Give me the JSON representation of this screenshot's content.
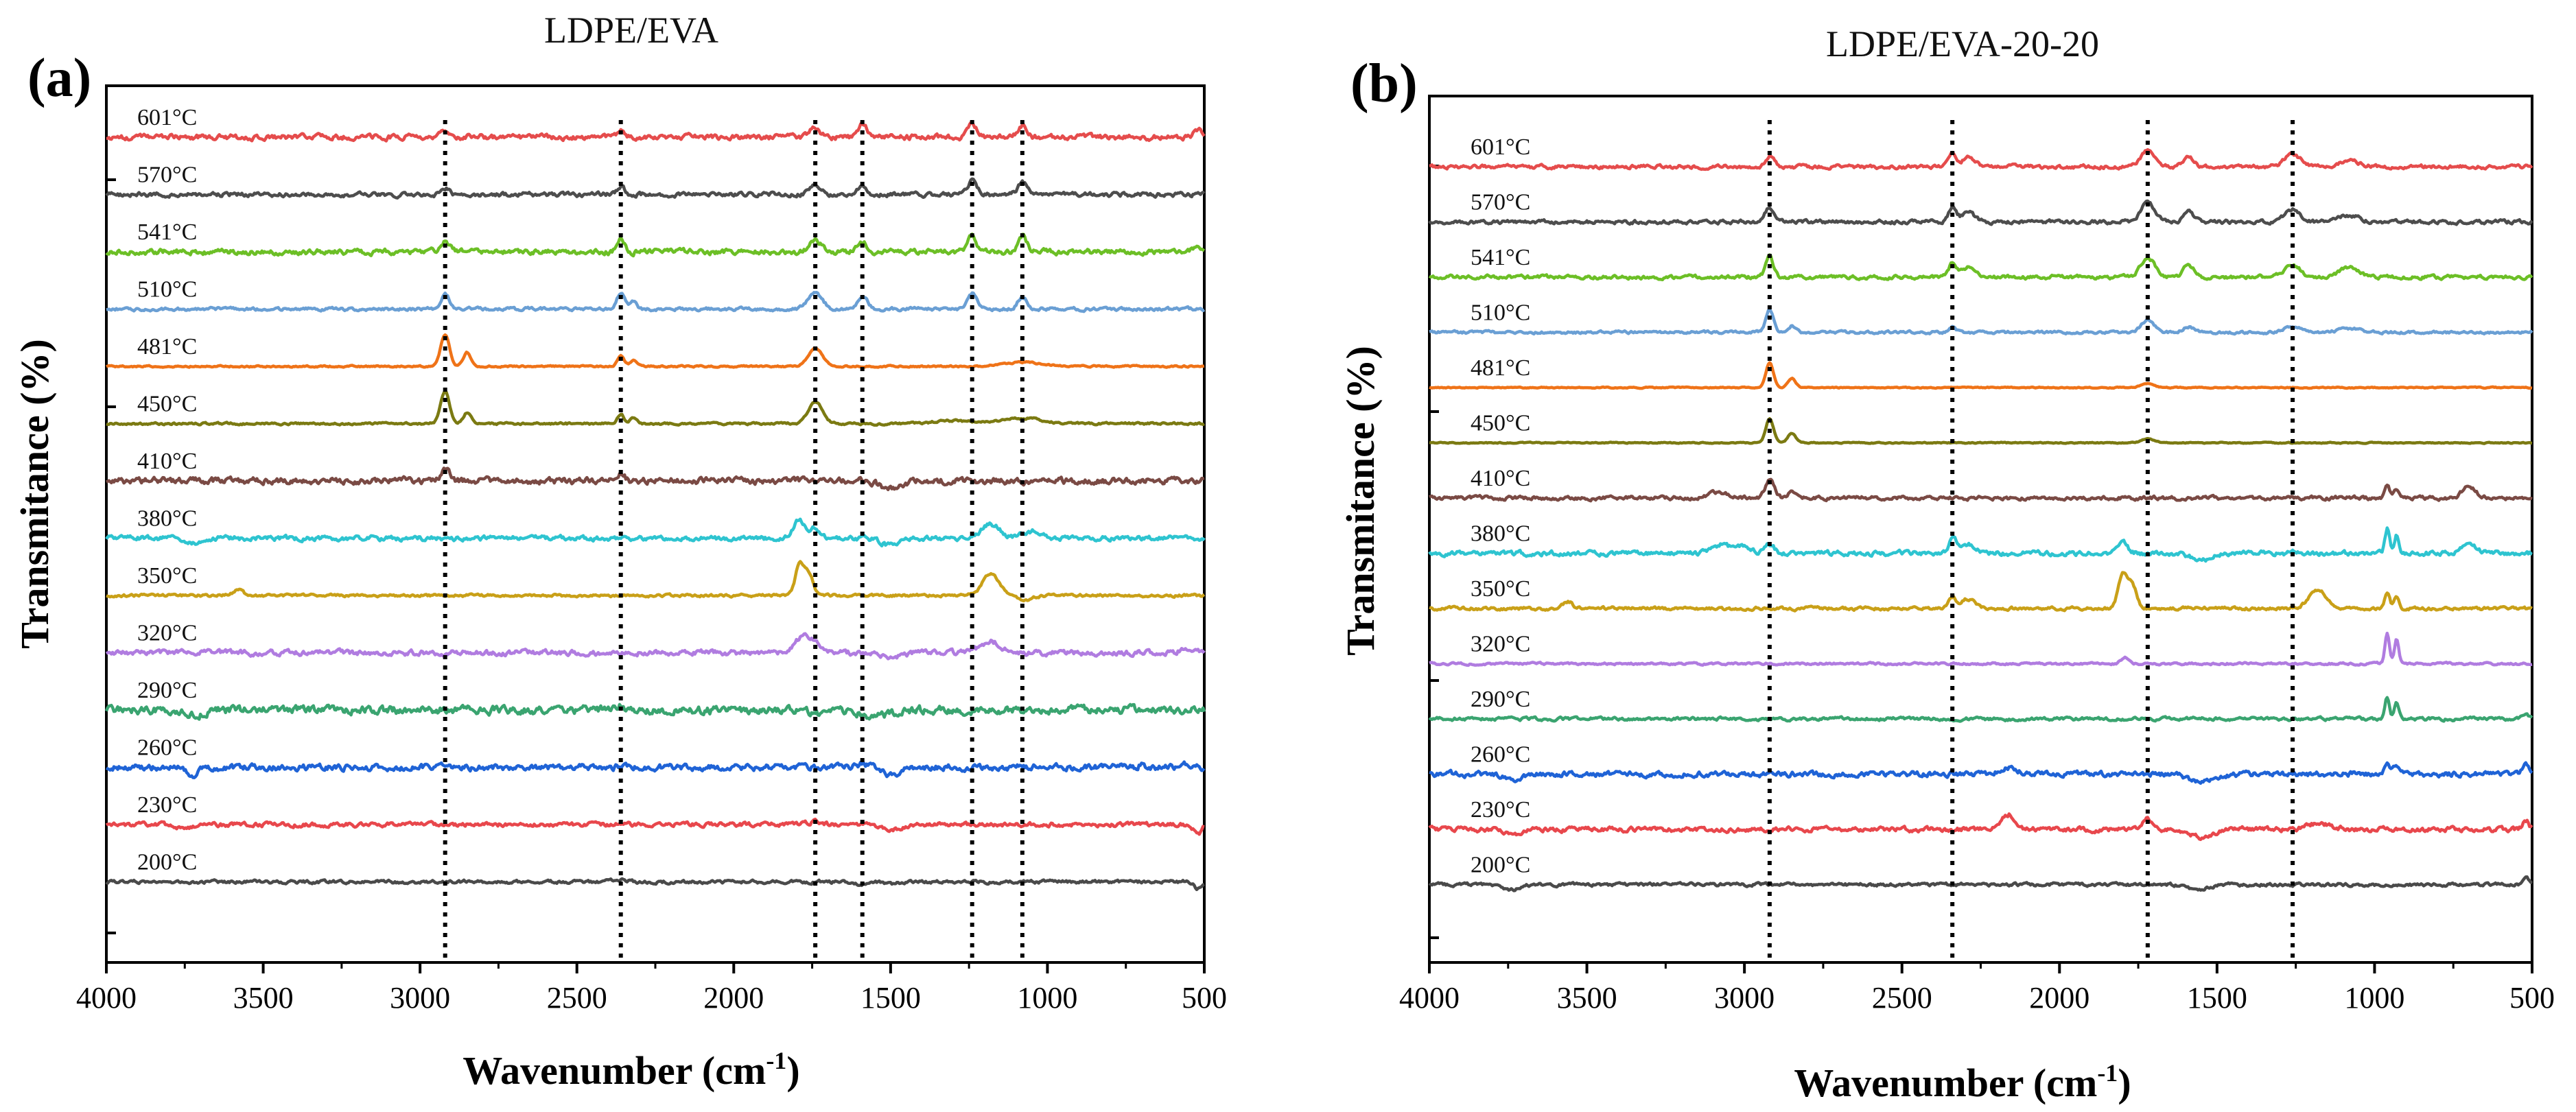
{
  "chart_data": [
    {
      "panel": "(a)",
      "type": "line",
      "title": "LDPE/EVA",
      "xlabel": "Wavenumber (cm",
      "xlabel_sup": "-1",
      "xlabel_close": ")",
      "ylabel": "Transmitance (%)",
      "xlim": [
        4000,
        500
      ],
      "xticks": [
        "4000",
        "3500",
        "3000",
        "2500",
        "2000",
        "1500",
        "1000",
        "500"
      ],
      "reference_lines": [
        2920,
        2360,
        1740,
        1590,
        1240,
        1080
      ],
      "series": [
        {
          "name": "200°C",
          "color": "#4a4a4a",
          "noise": 0.6,
          "peaks": [
            [
              2360,
              3,
              20
            ],
            [
              1590,
              -4,
              18
            ],
            [
              1500,
              -3,
              30
            ],
            [
              520,
              -10,
              12
            ]
          ]
        },
        {
          "name": "230°C",
          "color": "#e8474c",
          "noise": 0.8,
          "peaks": [
            [
              3750,
              -6,
              25
            ],
            [
              2360,
              4,
              15
            ],
            [
              1740,
              4,
              20
            ],
            [
              1500,
              -8,
              30
            ],
            [
              520,
              -14,
              12
            ]
          ]
        },
        {
          "name": "260°C",
          "color": "#1f63d6",
          "noise": 1.2,
          "peaks": [
            [
              3730,
              -12,
              20
            ],
            [
              1590,
              6,
              15
            ],
            [
              1500,
              -10,
              30
            ],
            [
              700,
              6,
              10
            ],
            [
              560,
              6,
              10
            ]
          ]
        },
        {
          "name": "290°C",
          "color": "#3aa470",
          "noise": 1.5,
          "peaks": [
            [
              3720,
              -8,
              25
            ],
            [
              2360,
              8,
              10
            ],
            [
              1740,
              -6,
              25
            ],
            [
              1550,
              -10,
              40
            ]
          ]
        },
        {
          "name": "320°C",
          "color": "#b07ce0",
          "noise": 1.0,
          "peaks": [
            [
              1780,
              24,
              22
            ],
            [
              1740,
              12,
              20
            ],
            [
              1500,
              -8,
              30
            ],
            [
              1180,
              16,
              30
            ],
            [
              560,
              8,
              15
            ]
          ]
        },
        {
          "name": "350°C",
          "color": "#c9a018",
          "noise": 0.5,
          "peaks": [
            [
              3580,
              8,
              15
            ],
            [
              1790,
              44,
              14
            ],
            [
              1760,
              30,
              14
            ],
            [
              1180,
              32,
              26
            ],
            [
              1070,
              -6,
              25
            ]
          ]
        },
        {
          "name": "380°C",
          "color": "#2ec4d0",
          "noise": 0.9,
          "peaks": [
            [
              3720,
              -6,
              20
            ],
            [
              1790,
              26,
              18
            ],
            [
              1740,
              14,
              15
            ],
            [
              1500,
              -10,
              30
            ],
            [
              1180,
              20,
              30
            ],
            [
              1050,
              10,
              30
            ]
          ]
        },
        {
          "name": "410°C",
          "color": "#7a4a44",
          "noise": 1.2,
          "peaks": [
            [
              2920,
              16,
              14
            ],
            [
              2360,
              10,
              12
            ],
            [
              1500,
              -12,
              30
            ]
          ]
        },
        {
          "name": "450°C",
          "color": "#7b7a12",
          "noise": 0.4,
          "peaks": [
            [
              2920,
              48,
              14
            ],
            [
              2850,
              16,
              12
            ],
            [
              2360,
              14,
              10
            ],
            [
              2320,
              8,
              10
            ],
            [
              1740,
              32,
              22
            ],
            [
              1300,
              4,
              60
            ],
            [
              1080,
              8,
              60
            ]
          ]
        },
        {
          "name": "481°C",
          "color": "#ef7318",
          "noise": 0.3,
          "peaks": [
            [
              2920,
              46,
              14
            ],
            [
              2850,
              20,
              12
            ],
            [
              2360,
              16,
              10
            ],
            [
              2320,
              8,
              10
            ],
            [
              1740,
              26,
              22
            ],
            [
              1080,
              6,
              60
            ]
          ]
        },
        {
          "name": "510°C",
          "color": "#6a9fd4",
          "noise": 0.6,
          "peaks": [
            [
              2920,
              22,
              14
            ],
            [
              2360,
              22,
              14
            ],
            [
              2320,
              10,
              10
            ],
            [
              1740,
              24,
              22
            ],
            [
              1590,
              18,
              16
            ],
            [
              1240,
              22,
              14
            ],
            [
              1080,
              18,
              14
            ]
          ]
        },
        {
          "name": "541°C",
          "color": "#6cbf26",
          "noise": 1.0,
          "peaks": [
            [
              2920,
              16,
              14
            ],
            [
              2360,
              18,
              12
            ],
            [
              1740,
              18,
              18
            ],
            [
              1590,
              16,
              14
            ],
            [
              1240,
              24,
              14
            ],
            [
              1080,
              24,
              14
            ],
            [
              520,
              12,
              12
            ]
          ]
        },
        {
          "name": "570°C",
          "color": "#4d4d4d",
          "noise": 0.8,
          "peaks": [
            [
              2920,
              10,
              12
            ],
            [
              2360,
              12,
              12
            ],
            [
              1740,
              12,
              18
            ],
            [
              1590,
              12,
              14
            ],
            [
              1240,
              20,
              14
            ],
            [
              1080,
              18,
              14
            ]
          ]
        },
        {
          "name": "601°C",
          "color": "#e54c4c",
          "noise": 1.0,
          "peaks": [
            [
              2920,
              8,
              12
            ],
            [
              2360,
              10,
              12
            ],
            [
              1740,
              14,
              16
            ],
            [
              1590,
              18,
              14
            ],
            [
              1240,
              18,
              14
            ],
            [
              1080,
              18,
              14
            ],
            [
              520,
              12,
              12
            ]
          ]
        }
      ]
    },
    {
      "panel": "(b)",
      "type": "line",
      "title": "LDPE/EVA-20-20",
      "xlabel": "Wavenumber (cm",
      "xlabel_sup": "-1",
      "xlabel_close": ")",
      "ylabel": "Transmitance (%)",
      "xlim": [
        4000,
        500
      ],
      "xticks": [
        "4000",
        "3500",
        "3000",
        "2500",
        "2000",
        "1500",
        "1000",
        "500"
      ],
      "reference_lines": [
        2920,
        2340,
        1720,
        1260
      ],
      "series": [
        {
          "name": "200°C",
          "color": "#4a4a4a",
          "noise": 0.6,
          "peaks": [
            [
              3740,
              -8,
              25
            ],
            [
              1560,
              -8,
              30
            ],
            [
              520,
              14,
              10
            ]
          ]
        },
        {
          "name": "230°C",
          "color": "#e8474c",
          "noise": 0.9,
          "peaks": [
            [
              3740,
              -8,
              25
            ],
            [
              2160,
              22,
              22
            ],
            [
              1720,
              14,
              14
            ],
            [
              1550,
              -12,
              35
            ],
            [
              1180,
              8,
              40
            ],
            [
              520,
              14,
              10
            ]
          ]
        },
        {
          "name": "260°C",
          "color": "#1f63d6",
          "noise": 1.0,
          "peaks": [
            [
              3740,
              -8,
              25
            ],
            [
              2160,
              10,
              25
            ],
            [
              1550,
              -12,
              35
            ],
            [
              960,
              18,
              8
            ],
            [
              930,
              14,
              8
            ],
            [
              520,
              14,
              10
            ]
          ]
        },
        {
          "name": "290°C",
          "color": "#3aa470",
          "noise": 0.6,
          "peaks": [
            [
              960,
              32,
              7
            ],
            [
              930,
              24,
              7
            ],
            [
              520,
              8,
              10
            ]
          ]
        },
        {
          "name": "320°C",
          "color": "#b07ce0",
          "noise": 0.4,
          "peaks": [
            [
              1790,
              8,
              14
            ],
            [
              960,
              44,
              7
            ],
            [
              930,
              36,
              7
            ]
          ]
        },
        {
          "name": "350°C",
          "color": "#c9a018",
          "noise": 0.6,
          "peaks": [
            [
              3560,
              10,
              15
            ],
            [
              2340,
              16,
              12
            ],
            [
              2290,
              14,
              22
            ],
            [
              1800,
              48,
              14
            ],
            [
              1770,
              36,
              14
            ],
            [
              1180,
              28,
              28
            ],
            [
              960,
              24,
              8
            ],
            [
              930,
              18,
              8
            ]
          ]
        },
        {
          "name": "380°C",
          "color": "#2ec4d0",
          "noise": 0.9,
          "peaks": [
            [
              3070,
              12,
              25
            ],
            [
              3000,
              12,
              20
            ],
            [
              2920,
              12,
              14
            ],
            [
              2340,
              20,
              12
            ],
            [
              2290,
              12,
              25
            ],
            [
              1800,
              16,
              16
            ],
            [
              1550,
              -10,
              30
            ],
            [
              960,
              36,
              7
            ],
            [
              930,
              28,
              7
            ],
            [
              700,
              16,
              20
            ]
          ]
        },
        {
          "name": "410°C",
          "color": "#7a4a44",
          "noise": 0.7,
          "peaks": [
            [
              3080,
              8,
              30
            ],
            [
              2920,
              26,
              14
            ],
            [
              2850,
              10,
              12
            ],
            [
              960,
              18,
              8
            ],
            [
              930,
              14,
              8
            ],
            [
              700,
              18,
              20
            ]
          ]
        },
        {
          "name": "450°C",
          "color": "#7b7a12",
          "noise": 0.2,
          "peaks": [
            [
              2920,
              36,
              12
            ],
            [
              2850,
              14,
              12
            ],
            [
              1720,
              6,
              20
            ]
          ]
        },
        {
          "name": "481°C",
          "color": "#ef7318",
          "noise": 0.2,
          "peaks": [
            [
              2920,
              36,
              12
            ],
            [
              2850,
              14,
              12
            ],
            [
              1720,
              6,
              20
            ]
          ]
        },
        {
          "name": "510°C",
          "color": "#6a9fd4",
          "noise": 0.5,
          "peaks": [
            [
              2920,
              34,
              12
            ],
            [
              2850,
              10,
              12
            ],
            [
              2340,
              8,
              12
            ],
            [
              1720,
              18,
              20
            ],
            [
              1590,
              8,
              18
            ],
            [
              1260,
              8,
              25
            ],
            [
              1080,
              6,
              30
            ]
          ]
        },
        {
          "name": "541°C",
          "color": "#6cbf26",
          "noise": 0.7,
          "peaks": [
            [
              2920,
              30,
              12
            ],
            [
              2340,
              20,
              12
            ],
            [
              2290,
              14,
              20
            ],
            [
              1720,
              28,
              22
            ],
            [
              1590,
              18,
              16
            ],
            [
              1260,
              18,
              25
            ],
            [
              1080,
              14,
              30
            ]
          ]
        },
        {
          "name": "570°C",
          "color": "#4d4d4d",
          "noise": 0.7,
          "peaks": [
            [
              2920,
              22,
              14
            ],
            [
              2340,
              22,
              12
            ],
            [
              2290,
              14,
              20
            ],
            [
              1720,
              28,
              22
            ],
            [
              1590,
              14,
              16
            ],
            [
              1260,
              18,
              25
            ],
            [
              1080,
              10,
              30
            ]
          ]
        },
        {
          "name": "601°C",
          "color": "#e54c4c",
          "noise": 0.7,
          "peaks": [
            [
              2920,
              16,
              14
            ],
            [
              2340,
              20,
              12
            ],
            [
              2290,
              14,
              20
            ],
            [
              1720,
              24,
              22
            ],
            [
              1590,
              14,
              16
            ],
            [
              1260,
              18,
              25
            ],
            [
              1080,
              10,
              30
            ]
          ]
        }
      ]
    }
  ]
}
